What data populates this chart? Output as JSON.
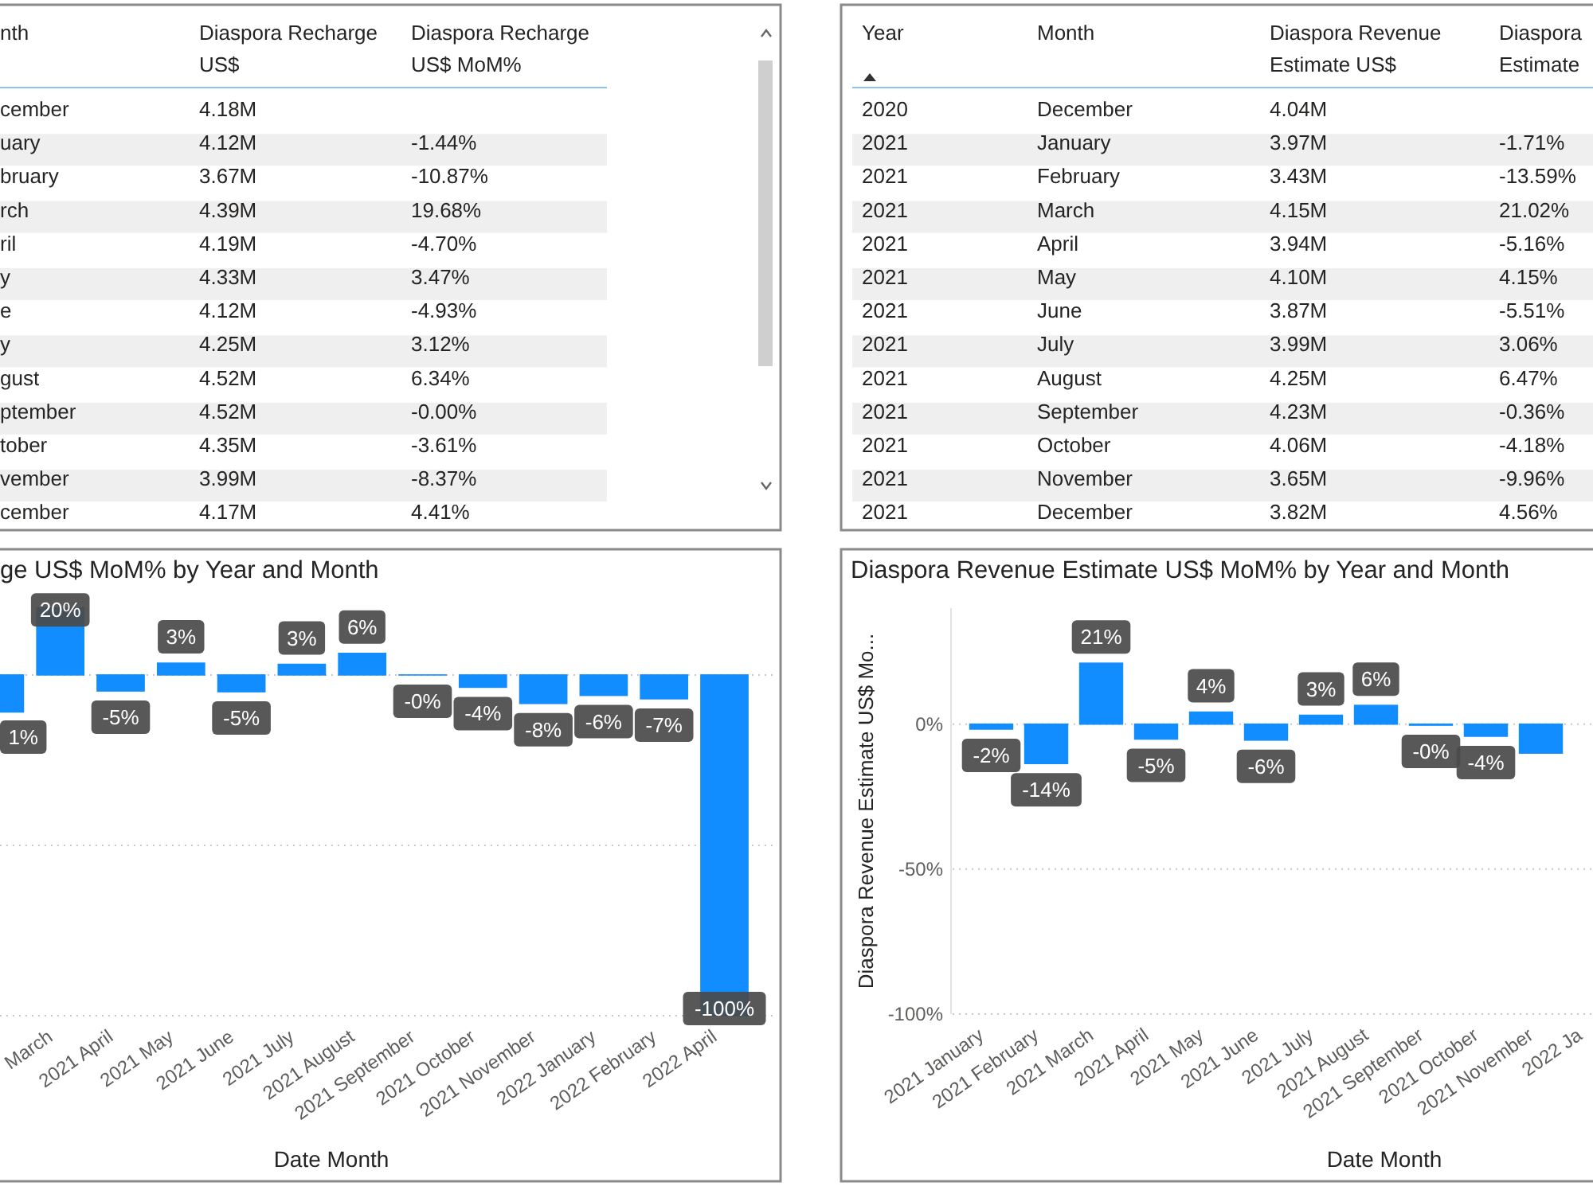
{
  "chart_data": [
    {
      "type": "other",
      "categories": [
        "nth",
        "Diaspora Recharge US$",
        "Diaspora Recharge US$ MoM%"
      ],
      "cell_labels": [
        [
          "cember",
          "4.18M",
          null
        ],
        [
          "uary",
          "4.12M",
          "-1.44%"
        ],
        [
          "bruary",
          "3.67M",
          "-10.87%"
        ],
        [
          "rch",
          "4.39M",
          "19.68%"
        ],
        [
          "ril",
          "4.19M",
          "-4.70%"
        ],
        [
          "y",
          "4.33M",
          "3.47%"
        ],
        [
          "e",
          "4.12M",
          "-4.93%"
        ],
        [
          "y",
          "4.25M",
          "3.12%"
        ],
        [
          "gust",
          "4.52M",
          "6.34%"
        ],
        [
          "ptember",
          "4.52M",
          "-0.00%"
        ],
        [
          "tober",
          "4.35M",
          "-3.61%"
        ],
        [
          "vember",
          "3.99M",
          "-8.37%"
        ],
        [
          "cember",
          "4.17M",
          "4.41%"
        ]
      ]
    },
    {
      "type": "other",
      "categories": [
        "Year",
        "Month",
        "Diaspora Revenue Estimate US$",
        "Diaspora Estimate"
      ],
      "cell_labels": [
        [
          "2020",
          "December",
          "4.04M",
          null
        ],
        [
          "2021",
          "January",
          "3.97M",
          "-1.71%"
        ],
        [
          "2021",
          "February",
          "3.43M",
          "-13.59%"
        ],
        [
          "2021",
          "March",
          "4.15M",
          "21.02%"
        ],
        [
          "2021",
          "April",
          "3.94M",
          "-5.16%"
        ],
        [
          "2021",
          "May",
          "4.10M",
          "4.15%"
        ],
        [
          "2021",
          "June",
          "3.87M",
          "-5.51%"
        ],
        [
          "2021",
          "July",
          "3.99M",
          "3.06%"
        ],
        [
          "2021",
          "August",
          "4.25M",
          "6.47%"
        ],
        [
          "2021",
          "September",
          "4.23M",
          "-0.36%"
        ],
        [
          "2021",
          "October",
          "4.06M",
          "-4.18%"
        ],
        [
          "2021",
          "November",
          "3.65M",
          "-9.96%"
        ],
        [
          "2021",
          "December",
          "3.82M",
          "4.56%"
        ]
      ]
    },
    {
      "type": "bar",
      "title": "ge US$ MoM% by Year and Month",
      "xlabel": "Date Month",
      "color": "#118dff",
      "categories": [
        null,
        "March",
        "2021 April",
        "2021 May",
        "2021 June",
        "2021 July",
        "2021 August",
        "2021 September",
        "2021 October",
        "2021 November",
        "2022 January",
        "2022 February",
        "2022 April"
      ],
      "values": [
        -10.87,
        19.68,
        -4.7,
        3.47,
        -4.93,
        3.12,
        6.34,
        -0.004,
        -3.61,
        -8.37,
        -6,
        -7,
        -100
      ],
      "annotations": [
        "1%"
      ],
      "value_labels": [
        null,
        "20%",
        "-5%",
        "3%",
        "-5%",
        "3%",
        "6%",
        "-0%",
        "-4%",
        "-8%",
        "-6%",
        "-7%",
        "-100%"
      ],
      "ylim": [
        -100,
        24
      ],
      "yticks": [
        {
          "value": 0,
          "label": null
        },
        {
          "value": -50,
          "label": null
        },
        {
          "value": -100,
          "label": null
        }
      ],
      "grid": "y",
      "tick_labels": "x"
    },
    {
      "type": "bar",
      "title": "Diaspora Revenue Estimate US$ MoM% by Year and Month",
      "xlabel": "Date Month",
      "ylabel": "Diaspora Revenue Estimate US$ Mo...",
      "color": "#118dff",
      "categories": [
        "2021 January",
        "2021 February",
        "2021 March",
        "2021 April",
        "2021 May",
        "2021 June",
        "2021 July",
        "2021 August",
        "2021 September",
        "2021 October",
        "2021 November",
        "2022 Ja"
      ],
      "values": [
        -1.71,
        -13.59,
        21.02,
        -5.16,
        4.15,
        -5.51,
        3.06,
        6.47,
        -0.36,
        -4.18,
        -10,
        null
      ],
      "value_labels": [
        "-2%",
        "-14%",
        "21%",
        "-5%",
        "4%",
        "-6%",
        "3%",
        "6%",
        "-0%",
        "-4%",
        null,
        null
      ],
      "ylim": [
        -100,
        40
      ],
      "yticks": [
        {
          "value": 0,
          "label": "0%"
        },
        {
          "value": -50,
          "label": "-50%"
        },
        {
          "value": -100,
          "label": "-100%"
        }
      ],
      "grid": "y"
    }
  ]
}
